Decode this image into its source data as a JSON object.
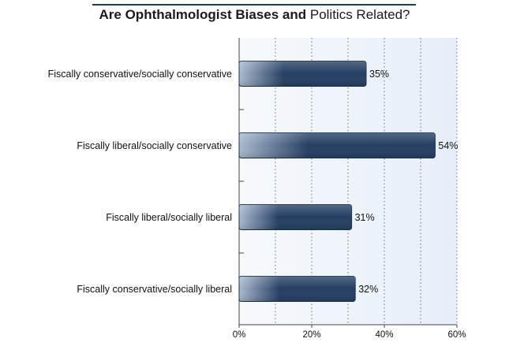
{
  "chart_data": {
    "type": "bar",
    "orientation": "horizontal",
    "title_parts": [
      {
        "text": "Are Ophthalmologist Biases",
        "bold": true
      },
      {
        "text": " and ",
        "bold": true
      },
      {
        "text": "Politics Related?",
        "bold": false
      }
    ],
    "categories": [
      "Fiscally conservative/socially conservative",
      "Fiscally liberal/socially conservative",
      "Fiscally liberal/socially liberal",
      "Fiscally conservative/socially liberal"
    ],
    "values": [
      35,
      54,
      31,
      32
    ],
    "value_labels": [
      "35%",
      "54%",
      "31%",
      "32%"
    ],
    "xlim": [
      0,
      60
    ],
    "xticks": [
      0,
      20,
      40,
      60
    ],
    "xtick_labels": [
      "0%",
      "20%",
      "40%",
      "60%"
    ],
    "minor_gridlines": [
      10,
      30,
      50
    ],
    "xlabel": "",
    "ylabel": "",
    "grid": true,
    "legend": "none",
    "colors": {
      "bar_dark": "#243f63",
      "bar_light": "#a9b9cf",
      "plot_bg_left": "#f7f9fc",
      "plot_bg_right": "#e6eef9",
      "title_rule": "#1f3a5f"
    }
  }
}
